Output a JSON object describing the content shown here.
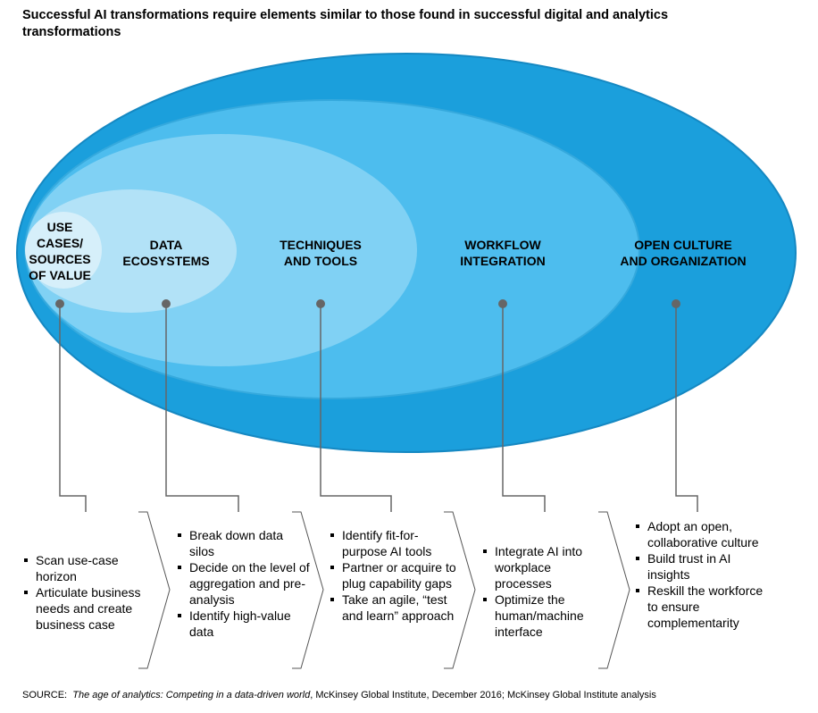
{
  "title": "Successful AI transformations require elements similar to those found in successful digital and analytics transformations",
  "colors": {
    "outer": "#1b9fdc",
    "second": "#4dbdee",
    "third": "#80d1f4",
    "fourth": "#b2e2f7",
    "inner": "#d6effa",
    "connector": "#666666"
  },
  "layers": [
    {
      "label_lines": [
        "USE",
        "CASES/",
        "SOURCES",
        "OF VALUE"
      ],
      "bullets": [
        "Scan use-case horizon",
        "Articulate business needs and create business case"
      ]
    },
    {
      "label_lines": [
        "DATA",
        "ECOSYSTEMS"
      ],
      "bullets": [
        "Break down data silos",
        "Decide on the level of aggregation and pre-analysis",
        "Identify high-value data"
      ]
    },
    {
      "label_lines": [
        "TECHNIQUES",
        "AND TOOLS"
      ],
      "bullets": [
        "Identify fit-for-purpose AI tools",
        "Partner or acquire to plug capability gaps",
        "Take an agile, “test and learn” approach"
      ]
    },
    {
      "label_lines": [
        "WORKFLOW",
        "INTEGRATION"
      ],
      "bullets": [
        "Integrate AI into workplace processes",
        "Optimize the human/machine interface"
      ]
    },
    {
      "label_lines": [
        "OPEN CULTURE",
        "AND ORGANIZATION"
      ],
      "bullets": [
        "Adopt an open, collaborative culture",
        "Build trust in AI insights",
        "Reskill the workforce to ensure complementarity"
      ]
    }
  ],
  "source": {
    "prefix": "SOURCE:",
    "work": "The age of analytics: Competing in a data-driven world",
    "rest": ", McKinsey Global Institute, December 2016; McKinsey Global Institute analysis"
  }
}
